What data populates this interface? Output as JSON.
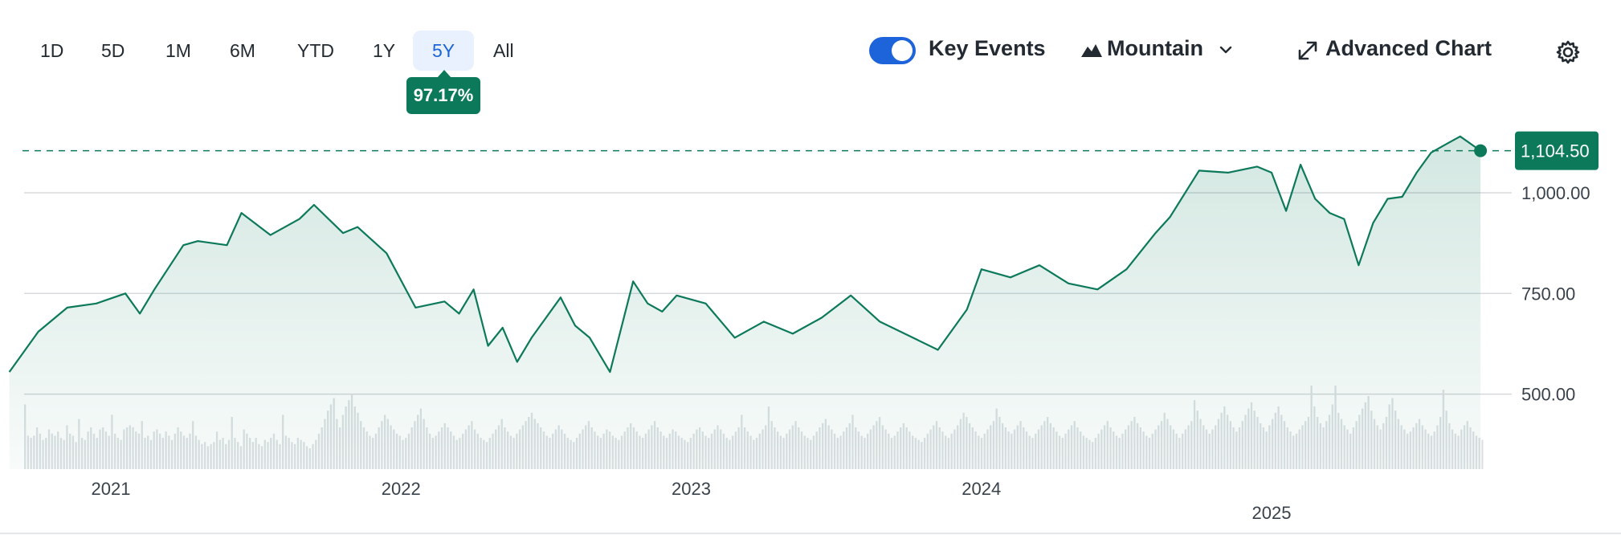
{
  "toolbar": {
    "ranges": [
      "1D",
      "5D",
      "1M",
      "6M",
      "YTD",
      "1Y",
      "5Y",
      "All"
    ],
    "active_range": "5Y",
    "change_badge": "97.17%",
    "key_events_label": "Key Events",
    "key_events_on": true,
    "chart_type_label": "Mountain",
    "advanced_label": "Advanced Chart",
    "icons": [
      "mountain-icon",
      "chevron-down-icon",
      "expand-icon",
      "gear-icon"
    ]
  },
  "colors": {
    "line": "#0c7a5a",
    "accent": "#1d63d9",
    "volume": "#dde1e4",
    "grid": "#d5d9dc"
  },
  "chart_data": {
    "type": "area",
    "title": "",
    "xlabel": "",
    "ylabel": "",
    "ylim": [
      465,
      1175
    ],
    "y_ticks": [
      "1,000.00",
      "750.00",
      "500.00"
    ],
    "y_tick_values": [
      1000,
      750,
      500
    ],
    "x_ticks": [
      "2021",
      "2022",
      "2023",
      "2024",
      "2025"
    ],
    "x_tick_values": [
      2021,
      2022,
      2023,
      2024,
      2025
    ],
    "current_label": "1,104.50",
    "current_value": 1104.5,
    "grid": true,
    "series": [
      {
        "x": [
          2020.65,
          2020.75,
          2020.85,
          2020.95,
          2021.05,
          2021.1,
          2021.15,
          2021.25,
          2021.3,
          2021.4,
          2021.45,
          2021.55,
          2021.65,
          2021.7,
          2021.8,
          2021.85,
          2021.95,
          2022.05,
          2022.15,
          2022.2,
          2022.25,
          2022.3,
          2022.35,
          2022.4,
          2022.45,
          2022.55,
          2022.6,
          2022.65,
          2022.72,
          2022.8,
          2022.85,
          2022.9,
          2022.95,
          2023.05,
          2023.15,
          2023.25,
          2023.35,
          2023.45,
          2023.55,
          2023.65,
          2023.75,
          2023.85,
          2023.95,
          2024.0,
          2024.1,
          2024.2,
          2024.3,
          2024.4,
          2024.5,
          2024.6,
          2024.65,
          2024.75,
          2024.85,
          2024.95,
          2025.0,
          2025.05,
          2025.1,
          2025.15,
          2025.2,
          2025.25,
          2025.3,
          2025.35,
          2025.4,
          2025.45,
          2025.5,
          2025.55,
          2025.6,
          2025.65,
          2025.72
        ],
        "values": [
          555,
          655,
          715,
          725,
          750,
          700,
          760,
          870,
          880,
          870,
          950,
          895,
          935,
          970,
          900,
          915,
          850,
          715,
          730,
          700,
          760,
          620,
          665,
          580,
          640,
          740,
          670,
          640,
          555,
          780,
          725,
          705,
          745,
          725,
          640,
          680,
          650,
          690,
          745,
          680,
          645,
          610,
          710,
          810,
          790,
          820,
          775,
          760,
          810,
          900,
          940,
          1055,
          1050,
          1065,
          1050,
          955,
          1070,
          985,
          950,
          935,
          820,
          925,
          985,
          990,
          1050,
          1100,
          1120,
          1140,
          1104.5
        ]
      }
    ],
    "volume": [
      0.62,
      0.32,
      0.3,
      0.32,
      0.4,
      0.34,
      0.28,
      0.3,
      0.38,
      0.34,
      0.32,
      0.36,
      0.3,
      0.28,
      0.42,
      0.34,
      0.32,
      0.26,
      0.48,
      0.3,
      0.28,
      0.36,
      0.4,
      0.34,
      0.3,
      0.38,
      0.4,
      0.36,
      0.32,
      0.52,
      0.34,
      0.3,
      0.28,
      0.38,
      0.4,
      0.42,
      0.4,
      0.36,
      0.34,
      0.46,
      0.3,
      0.32,
      0.28,
      0.36,
      0.38,
      0.34,
      0.3,
      0.36,
      0.32,
      0.28,
      0.34,
      0.4,
      0.36,
      0.32,
      0.3,
      0.34,
      0.46,
      0.32,
      0.28,
      0.24,
      0.26,
      0.22,
      0.24,
      0.26,
      0.36,
      0.28,
      0.3,
      0.24,
      0.28,
      0.5,
      0.3,
      0.26,
      0.22,
      0.38,
      0.34,
      0.3,
      0.26,
      0.3,
      0.24,
      0.22,
      0.28,
      0.26,
      0.3,
      0.34,
      0.28,
      0.24,
      0.52,
      0.32,
      0.3,
      0.26,
      0.24,
      0.3,
      0.28,
      0.26,
      0.22,
      0.2,
      0.24,
      0.28,
      0.34,
      0.4,
      0.48,
      0.56,
      0.62,
      0.68,
      0.48,
      0.4,
      0.52,
      0.6,
      0.66,
      0.72,
      0.6,
      0.54,
      0.46,
      0.4,
      0.36,
      0.32,
      0.3,
      0.34,
      0.4,
      0.46,
      0.52,
      0.48,
      0.42,
      0.38,
      0.34,
      0.32,
      0.28,
      0.3,
      0.34,
      0.4,
      0.46,
      0.52,
      0.58,
      0.48,
      0.4,
      0.34,
      0.3,
      0.32,
      0.36,
      0.4,
      0.44,
      0.4,
      0.36,
      0.32,
      0.28,
      0.3,
      0.34,
      0.38,
      0.42,
      0.46,
      0.38,
      0.34,
      0.3,
      0.28,
      0.26,
      0.3,
      0.34,
      0.38,
      0.42,
      0.48,
      0.4,
      0.36,
      0.32,
      0.3,
      0.34,
      0.38,
      0.42,
      0.46,
      0.5,
      0.54,
      0.48,
      0.44,
      0.4,
      0.36,
      0.32,
      0.3,
      0.34,
      0.38,
      0.42,
      0.38,
      0.34,
      0.3,
      0.28,
      0.26,
      0.3,
      0.34,
      0.38,
      0.42,
      0.46,
      0.4,
      0.36,
      0.32,
      0.3,
      0.34,
      0.38,
      0.36,
      0.32,
      0.3,
      0.28,
      0.32,
      0.36,
      0.4,
      0.44,
      0.4,
      0.36,
      0.32,
      0.3,
      0.34,
      0.38,
      0.42,
      0.46,
      0.4,
      0.36,
      0.32,
      0.3,
      0.34,
      0.38,
      0.36,
      0.32,
      0.3,
      0.28,
      0.26,
      0.3,
      0.34,
      0.38,
      0.4,
      0.36,
      0.32,
      0.3,
      0.34,
      0.38,
      0.42,
      0.38,
      0.34,
      0.3,
      0.28,
      0.32,
      0.36,
      0.4,
      0.52,
      0.4,
      0.36,
      0.32,
      0.28,
      0.3,
      0.34,
      0.38,
      0.42,
      0.6,
      0.46,
      0.4,
      0.36,
      0.32,
      0.3,
      0.34,
      0.38,
      0.42,
      0.46,
      0.4,
      0.36,
      0.32,
      0.3,
      0.28,
      0.32,
      0.36,
      0.4,
      0.44,
      0.48,
      0.42,
      0.38,
      0.34,
      0.3,
      0.32,
      0.36,
      0.4,
      0.44,
      0.52,
      0.4,
      0.36,
      0.32,
      0.3,
      0.34,
      0.38,
      0.42,
      0.46,
      0.5,
      0.42,
      0.38,
      0.34,
      0.3,
      0.32,
      0.36,
      0.4,
      0.44,
      0.4,
      0.36,
      0.32,
      0.3,
      0.28,
      0.26,
      0.3,
      0.34,
      0.38,
      0.42,
      0.46,
      0.4,
      0.36,
      0.32,
      0.3,
      0.34,
      0.38,
      0.42,
      0.48,
      0.54,
      0.5,
      0.44,
      0.4,
      0.36,
      0.32,
      0.3,
      0.34,
      0.38,
      0.42,
      0.46,
      0.58,
      0.5,
      0.44,
      0.4,
      0.36,
      0.34,
      0.38,
      0.42,
      0.46,
      0.4,
      0.36,
      0.32,
      0.3,
      0.34,
      0.38,
      0.42,
      0.46,
      0.5,
      0.44,
      0.4,
      0.36,
      0.32,
      0.3,
      0.34,
      0.38,
      0.42,
      0.46,
      0.4,
      0.36,
      0.32,
      0.3,
      0.28,
      0.26,
      0.3,
      0.34,
      0.38,
      0.42,
      0.46,
      0.4,
      0.36,
      0.32,
      0.3,
      0.34,
      0.38,
      0.42,
      0.46,
      0.5,
      0.44,
      0.4,
      0.36,
      0.32,
      0.3,
      0.34,
      0.38,
      0.42,
      0.46,
      0.54,
      0.48,
      0.42,
      0.38,
      0.34,
      0.3,
      0.34,
      0.38,
      0.42,
      0.46,
      0.66,
      0.56,
      0.48,
      0.42,
      0.38,
      0.34,
      0.38,
      0.42,
      0.48,
      0.54,
      0.6,
      0.52,
      0.46,
      0.4,
      0.36,
      0.4,
      0.46,
      0.52,
      0.58,
      0.64,
      0.56,
      0.5,
      0.44,
      0.4,
      0.36,
      0.42,
      0.48,
      0.54,
      0.6,
      0.52,
      0.46,
      0.4,
      0.36,
      0.32,
      0.34,
      0.38,
      0.42,
      0.46,
      0.5,
      0.8,
      0.6,
      0.5,
      0.44,
      0.4,
      0.46,
      0.52,
      0.62,
      0.8,
      0.54,
      0.48,
      0.42,
      0.38,
      0.34,
      0.4,
      0.46,
      0.52,
      0.58,
      0.64,
      0.7,
      0.56,
      0.48,
      0.42,
      0.38,
      0.44,
      0.5,
      0.62,
      0.68,
      0.56,
      0.48,
      0.42,
      0.38,
      0.34,
      0.36,
      0.4,
      0.44,
      0.48,
      0.42,
      0.38,
      0.34,
      0.32,
      0.36,
      0.42,
      0.5,
      0.76,
      0.56,
      0.44,
      0.38,
      0.34,
      0.32,
      0.38,
      0.42,
      0.46,
      0.4,
      0.36,
      0.32,
      0.3,
      0.28
    ]
  }
}
